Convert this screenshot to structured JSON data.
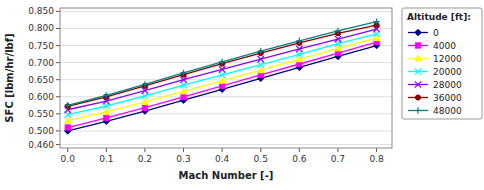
{
  "chart_data": {
    "type": "line",
    "xlabel": "Mach Number [-]",
    "ylabel": "SFC [lbm/hr/lbf]",
    "legend_title": "Altitude [ft]:",
    "x": [
      0.0,
      0.1,
      0.2,
      0.3,
      0.4,
      0.5,
      0.6,
      0.7,
      0.8
    ],
    "xlim": [
      -0.02,
      0.84
    ],
    "ylim": [
      0.45,
      0.86
    ],
    "xticks": [
      {
        "value": 0,
        "label": "0.0"
      },
      0.1,
      0.2,
      0.3,
      0.4,
      0.5,
      0.6,
      0.7,
      0.8
    ],
    "yticks": [
      {
        "value": 0.46,
        "label": "0.460"
      },
      {
        "value": 0.5,
        "label": "0.500"
      },
      {
        "value": 0.55,
        "label": "0.550"
      },
      {
        "value": 0.6,
        "label": "0.600"
      },
      {
        "value": 0.65,
        "label": "0.650"
      },
      {
        "value": 0.7,
        "label": "0.700"
      },
      {
        "value": 0.75,
        "label": "0.750"
      },
      {
        "value": 0.8,
        "label": "0.800"
      },
      {
        "value": 0.85,
        "label": "0.850"
      }
    ],
    "grid": true,
    "legend": "right",
    "series": [
      {
        "name": "0",
        "color": "#000080",
        "marker": "diamond",
        "values": [
          0.5,
          0.528,
          0.558,
          0.59,
          0.622,
          0.654,
          0.686,
          0.718,
          0.75
        ]
      },
      {
        "name": "4000",
        "color": "#FF00FF",
        "marker": "square",
        "values": [
          0.51,
          0.538,
          0.568,
          0.6,
          0.632,
          0.664,
          0.696,
          0.728,
          0.76
        ]
      },
      {
        "name": "12000",
        "color": "#FFFF00",
        "marker": "triangle",
        "values": [
          0.53,
          0.556,
          0.585,
          0.616,
          0.647,
          0.678,
          0.71,
          0.742,
          0.772
        ]
      },
      {
        "name": "20000",
        "color": "#00FFFF",
        "marker": "x",
        "values": [
          0.548,
          0.573,
          0.603,
          0.634,
          0.664,
          0.694,
          0.724,
          0.756,
          0.784
        ]
      },
      {
        "name": "28000",
        "color": "#8B00FF",
        "marker": "x",
        "values": [
          0.562,
          0.587,
          0.618,
          0.65,
          0.68,
          0.71,
          0.74,
          0.769,
          0.798
        ]
      },
      {
        "name": "36000",
        "color": "#8B0000",
        "marker": "circle",
        "values": [
          0.572,
          0.6,
          0.632,
          0.665,
          0.697,
          0.728,
          0.758,
          0.786,
          0.81
        ]
      },
      {
        "name": "48000",
        "color": "#008080",
        "marker": "plus",
        "values": [
          0.575,
          0.604,
          0.636,
          0.67,
          0.702,
          0.734,
          0.764,
          0.793,
          0.82
        ]
      }
    ]
  }
}
